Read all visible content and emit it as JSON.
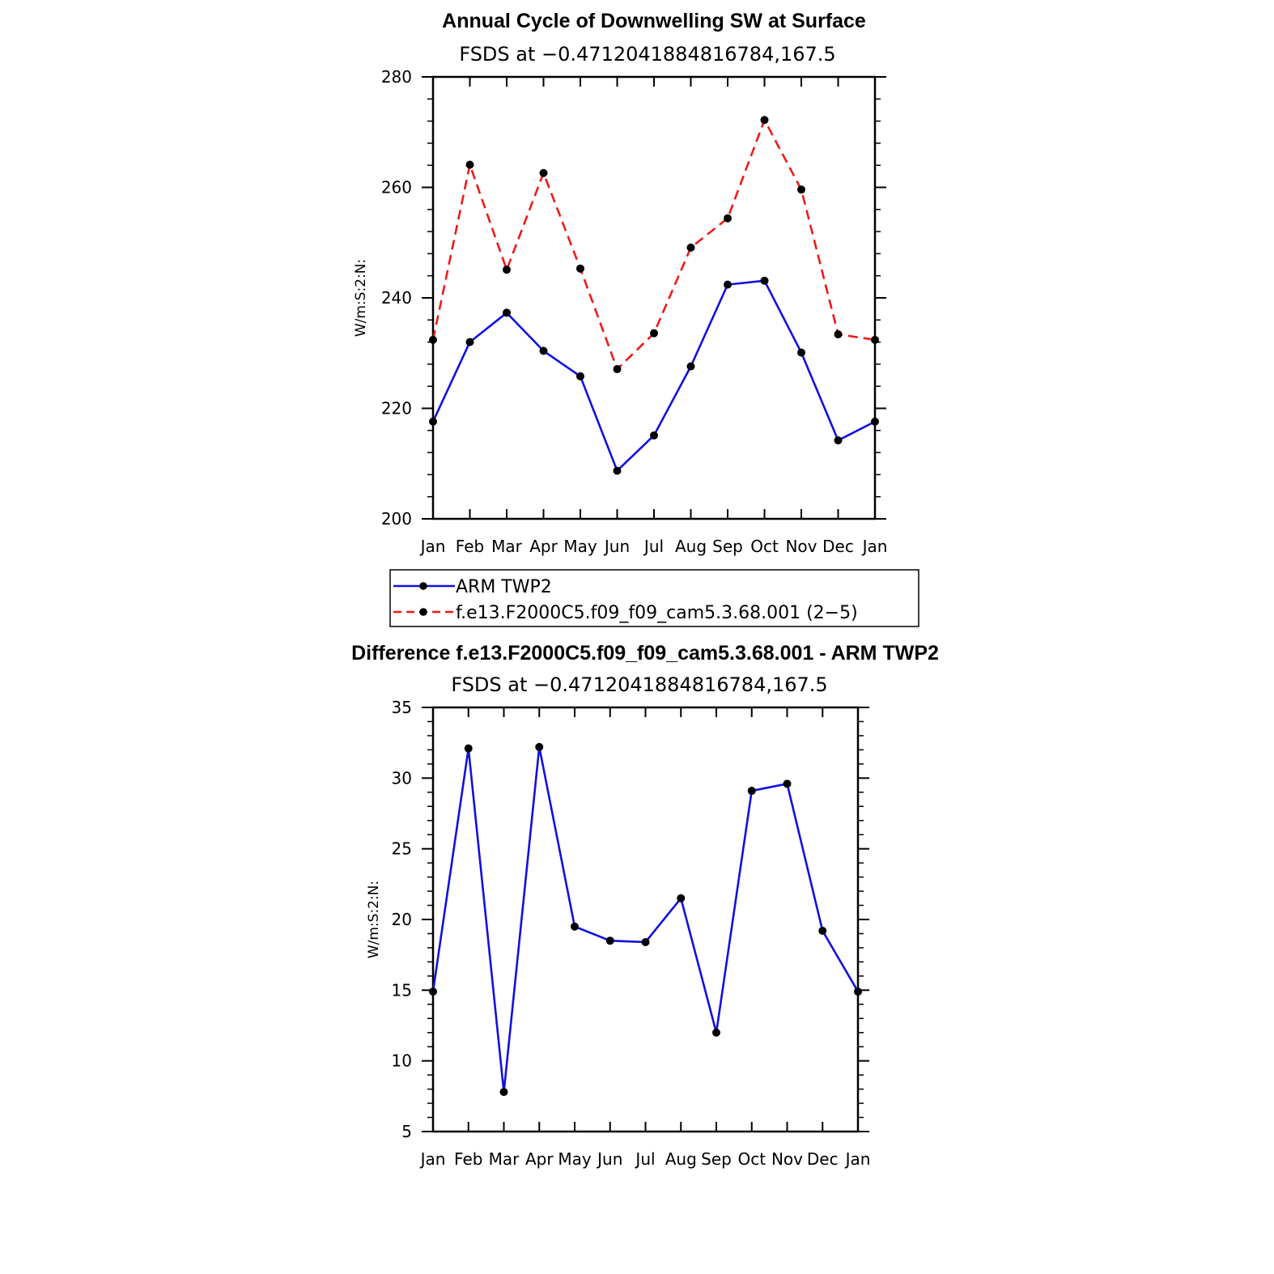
{
  "chart_data": [
    {
      "type": "line",
      "title": "Annual Cycle of Downwelling SW at Surface",
      "subtitle": "FSDS at −0.4712041884816784,167.5",
      "ylabel": "W/m:S:2:N:",
      "xlabel": "",
      "categories": [
        "Jan",
        "Feb",
        "Mar",
        "Apr",
        "May",
        "Jun",
        "Jul",
        "Aug",
        "Sep",
        "Oct",
        "Nov",
        "Dec",
        "Jan"
      ],
      "ylim": [
        200,
        280
      ],
      "yticks": [
        200,
        220,
        240,
        260,
        280
      ],
      "series": [
        {
          "name": "ARM TWP2",
          "color": "#1010e0",
          "dash": "solid",
          "values": [
            217.6,
            232.0,
            237.3,
            230.4,
            225.8,
            208.7,
            215.1,
            227.6,
            242.4,
            243.1,
            230.1,
            214.2,
            217.6
          ]
        },
        {
          "name": "f.e13.F2000C5.f09_f09_cam5.3.68.001 (2−5)",
          "color": "#ee1a1a",
          "dash": "dashed",
          "values": [
            232.4,
            264.1,
            245.1,
            262.6,
            245.3,
            227.1,
            233.6,
            249.1,
            254.4,
            272.2,
            259.6,
            233.4,
            232.4
          ]
        }
      ],
      "legend_placement": "below"
    },
    {
      "type": "line",
      "title": "Difference f.e13.F2000C5.f09_f09_cam5.3.68.001 - ARM TWP2",
      "subtitle": "FSDS at −0.4712041884816784,167.5",
      "ylabel": "W/m:S:2:N:",
      "xlabel": "",
      "categories": [
        "Jan",
        "Feb",
        "Mar",
        "Apr",
        "May",
        "Jun",
        "Jul",
        "Aug",
        "Sep",
        "Oct",
        "Nov",
        "Dec",
        "Jan"
      ],
      "ylim": [
        5,
        35
      ],
      "yticks": [
        5,
        10,
        15,
        20,
        25,
        30,
        35
      ],
      "series": [
        {
          "color": "#1010e0",
          "dash": "solid",
          "values": [
            14.9,
            32.1,
            7.8,
            32.2,
            19.5,
            18.5,
            18.4,
            21.5,
            12.0,
            29.1,
            29.6,
            19.2,
            14.9
          ]
        }
      ]
    }
  ]
}
